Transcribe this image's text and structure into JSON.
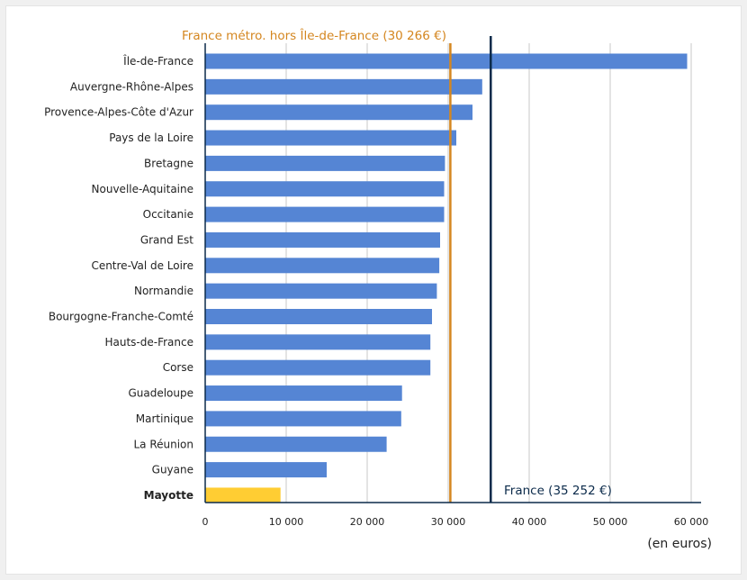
{
  "chart_data": {
    "type": "bar",
    "orientation": "horizontal",
    "categories": [
      "Île-de-France",
      "Auvergne-Rhône-Alpes",
      "Provence-Alpes-Côte d'Azur",
      "Pays de la Loire",
      "Bretagne",
      "Nouvelle-Aquitaine",
      "Occitanie",
      "Grand Est",
      "Centre-Val de Loire",
      "Normandie",
      "Bourgogne-Franche-Comté",
      "Hauts-de-France",
      "Corse",
      "Guadeloupe",
      "Martinique",
      "La Réunion",
      "Guyane",
      "Mayotte"
    ],
    "values": [
      59500,
      34200,
      33000,
      31000,
      29600,
      29500,
      29500,
      29000,
      28900,
      28600,
      28000,
      27800,
      27800,
      24300,
      24200,
      22400,
      15000,
      9300
    ],
    "highlight_category": "Mayotte",
    "xlim": [
      0,
      60000
    ],
    "xticks": [
      0,
      10000,
      20000,
      30000,
      40000,
      50000,
      60000
    ],
    "xtick_labels": [
      "0",
      "10 000",
      "20 000",
      "30 000",
      "40 000",
      "50 000",
      "60 000"
    ],
    "xlabel": "(en euros)",
    "grid": "vertical",
    "reference_lines": [
      {
        "label": "France métro. hors Île-de-France (30 266 €)",
        "value": 30266,
        "color": "#d4861f",
        "label_position": "top"
      },
      {
        "label": "France (35 252 €)",
        "value": 35252,
        "color": "#0b2a4a",
        "label_position": "bottom"
      }
    ],
    "colors": {
      "bar": "#5585d4",
      "highlight": "#ffcd33",
      "axis": "#0b2a4a",
      "grid": "#c8c8c8"
    }
  }
}
